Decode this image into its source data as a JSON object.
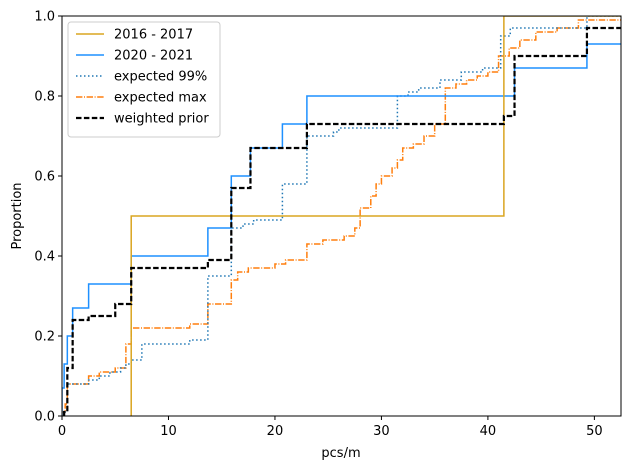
{
  "chart_data": {
    "type": "line",
    "step": true,
    "xlabel": "pcs/m",
    "ylabel": "Proportion",
    "xlim": [
      0,
      52.5
    ],
    "ylim": [
      0,
      1.0
    ],
    "xticks": [
      0,
      10,
      20,
      30,
      40,
      50
    ],
    "yticks": [
      0.0,
      0.2,
      0.4,
      0.6,
      0.8,
      1.0
    ],
    "xtick_labels": [
      "0",
      "10",
      "20",
      "30",
      "40",
      "50"
    ],
    "ytick_labels": [
      "0.0",
      "0.2",
      "0.4",
      "0.6",
      "0.8",
      "1.0"
    ],
    "grid": false,
    "legend_position": "upper-left",
    "series": [
      {
        "name": "2016 - 2017",
        "color": "#daa520",
        "style": "solid",
        "x": [
          6.5,
          41.5
        ],
        "y": [
          0.5,
          1.0
        ]
      },
      {
        "name": "2020 - 2021",
        "color": "#1e90ff",
        "style": "solid",
        "x": [
          0.0,
          0.2,
          0.5,
          1.0,
          2.5,
          6.5,
          13.7,
          15.9,
          17.7,
          20.7,
          23.0,
          42.5,
          49.3
        ],
        "y": [
          0.07,
          0.13,
          0.2,
          0.27,
          0.33,
          0.4,
          0.47,
          0.6,
          0.67,
          0.73,
          0.8,
          0.87,
          0.93
        ]
      },
      {
        "name": "expected 99%",
        "color": "#1f77b4",
        "style": "dotted",
        "x": [
          0.2,
          0.5,
          2.5,
          3.5,
          4.5,
          5.5,
          6.0,
          6.5,
          7.5,
          12.0,
          13.7,
          15.9,
          17.0,
          18.0,
          20.7,
          23.0,
          25.5,
          26.0,
          31.5,
          32.5,
          33.5,
          35.5,
          37.5,
          39.5,
          41.2,
          42.1,
          49.3
        ],
        "y": [
          0.01,
          0.08,
          0.09,
          0.1,
          0.11,
          0.12,
          0.13,
          0.14,
          0.18,
          0.19,
          0.35,
          0.47,
          0.48,
          0.49,
          0.58,
          0.7,
          0.71,
          0.72,
          0.8,
          0.81,
          0.82,
          0.84,
          0.86,
          0.87,
          0.95,
          0.97,
          1.0
        ]
      },
      {
        "name": "expected max",
        "color": "#ff7f0e",
        "style": "dashdot",
        "x": [
          0.0,
          0.3,
          0.5,
          2.5,
          3.5,
          5.0,
          6.0,
          6.5,
          8.0,
          12.0,
          13.7,
          15.9,
          16.5,
          17.5,
          18.0,
          20.0,
          21.0,
          23.0,
          24.5,
          26.5,
          27.5,
          28.0,
          29.0,
          29.5,
          30.0,
          31.0,
          31.5,
          32.0,
          33.0,
          34.0,
          35.0,
          36.0,
          37.0,
          38.0,
          39.0,
          40.0,
          41.0,
          42.0,
          43.0,
          44.5,
          46.5,
          48.5
        ],
        "y": [
          0.01,
          0.03,
          0.08,
          0.1,
          0.11,
          0.12,
          0.18,
          0.22,
          0.22,
          0.23,
          0.28,
          0.34,
          0.36,
          0.37,
          0.37,
          0.38,
          0.39,
          0.43,
          0.44,
          0.45,
          0.47,
          0.52,
          0.55,
          0.58,
          0.6,
          0.62,
          0.64,
          0.67,
          0.68,
          0.7,
          0.73,
          0.82,
          0.83,
          0.84,
          0.85,
          0.86,
          0.9,
          0.92,
          0.94,
          0.96,
          0.97,
          0.99
        ]
      },
      {
        "name": "weighted prior",
        "color": "#000000",
        "style": "dashed",
        "x": [
          0.2,
          0.5,
          1.0,
          2.5,
          5.0,
          6.5,
          13.7,
          15.9,
          17.7,
          20.7,
          23.0,
          35.0,
          41.5,
          42.5,
          49.3
        ],
        "y": [
          0.01,
          0.12,
          0.24,
          0.25,
          0.28,
          0.37,
          0.39,
          0.57,
          0.67,
          0.67,
          0.73,
          0.73,
          0.75,
          0.9,
          0.97
        ]
      }
    ]
  }
}
